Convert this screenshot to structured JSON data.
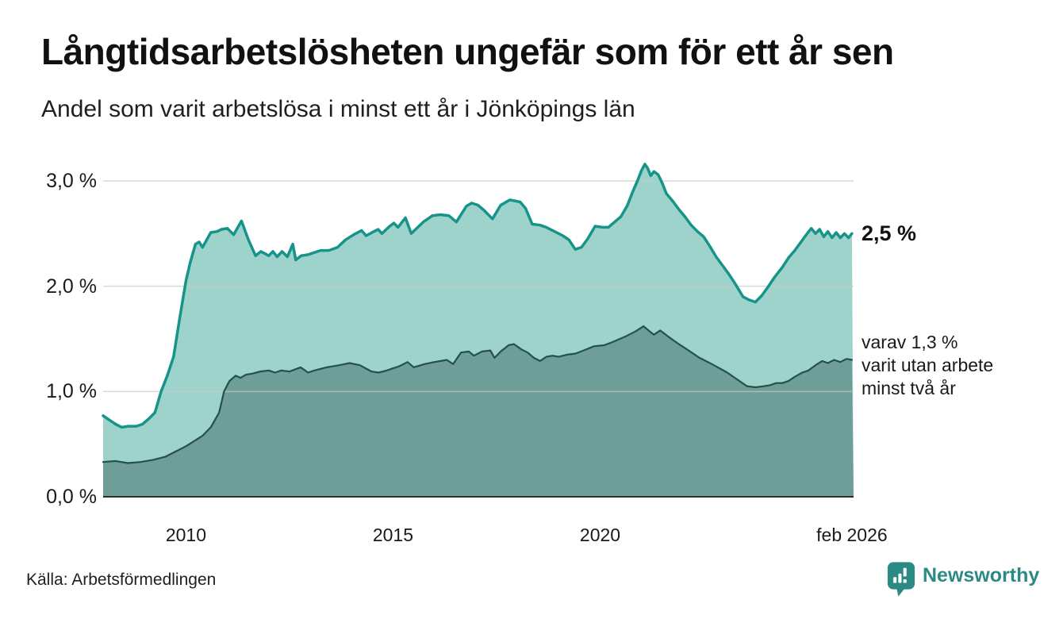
{
  "header": {
    "title": "Långtidsarbetslösheten ungefär som för ett år sen",
    "subtitle": "Andel som varit arbetslösa i minst ett år i Jönköpings län"
  },
  "annotations": {
    "latest_total": "2,5 %",
    "latest_two_year": "varav 1,3 %\nvarit utan arbete\nminst två år"
  },
  "footer": {
    "source": "Källa: Arbetsförmedlingen",
    "brand": "Newsworthy",
    "brand_icon": "newsworthy-bubble-barchart-icon"
  },
  "colors": {
    "total_line": "#17948a",
    "total_fill": "#9ed3cc",
    "two_year_line": "#23514e",
    "two_year_fill": "#6f9d97",
    "gridline": "#c9c9c9",
    "axis": "#1a1a1a",
    "brand_teal": "#2b8b84"
  },
  "chart_data": {
    "type": "area",
    "title": "Långtidsarbetslösheten ungefär som för ett år sen",
    "subtitle": "Andel som varit arbetslösa i minst ett år i Jönköpings län",
    "xlabel": "",
    "ylabel": "",
    "xlim": [
      2008.0,
      2026.12
    ],
    "ylim": [
      0,
      3.2
    ],
    "grid": true,
    "legend": "none",
    "y_ticks": [
      {
        "label": "0,0 %",
        "value": 0
      },
      {
        "label": "1,0 %",
        "value": 1
      },
      {
        "label": "2,0 %",
        "value": 2
      },
      {
        "label": "3,0 %",
        "value": 3
      }
    ],
    "x_ticks": [
      {
        "label": "2010",
        "year": 2010
      },
      {
        "label": "2015",
        "year": 2015
      },
      {
        "label": "2020",
        "year": 2020
      },
      {
        "label": "feb 2026",
        "year": 2026.08
      }
    ],
    "series": [
      {
        "name": "Arbetslösa minst ett år",
        "latest_label": "2,5 %",
        "latest_value": 2.5,
        "color": "#17948a",
        "fill": "#9ed3cc",
        "stroke_width": 3.5,
        "points": [
          [
            2008.0,
            0.77
          ],
          [
            2008.15,
            0.73
          ],
          [
            2008.3,
            0.69
          ],
          [
            2008.45,
            0.66
          ],
          [
            2008.6,
            0.67
          ],
          [
            2008.8,
            0.67
          ],
          [
            2008.95,
            0.69
          ],
          [
            2009.1,
            0.74
          ],
          [
            2009.25,
            0.8
          ],
          [
            2009.4,
            1.0
          ],
          [
            2009.55,
            1.15
          ],
          [
            2009.7,
            1.33
          ],
          [
            2009.85,
            1.7
          ],
          [
            2010.0,
            2.05
          ],
          [
            2010.1,
            2.22
          ],
          [
            2010.23,
            2.4
          ],
          [
            2010.32,
            2.42
          ],
          [
            2010.4,
            2.37
          ],
          [
            2010.6,
            2.51
          ],
          [
            2010.75,
            2.52
          ],
          [
            2010.86,
            2.54
          ],
          [
            2011.0,
            2.55
          ],
          [
            2011.15,
            2.49
          ],
          [
            2011.34,
            2.62
          ],
          [
            2011.5,
            2.45
          ],
          [
            2011.68,
            2.29
          ],
          [
            2011.81,
            2.33
          ],
          [
            2012.0,
            2.29
          ],
          [
            2012.1,
            2.33
          ],
          [
            2012.2,
            2.28
          ],
          [
            2012.32,
            2.33
          ],
          [
            2012.45,
            2.28
          ],
          [
            2012.58,
            2.4
          ],
          [
            2012.65,
            2.25
          ],
          [
            2012.78,
            2.29
          ],
          [
            2012.95,
            2.3
          ],
          [
            2013.1,
            2.32
          ],
          [
            2013.25,
            2.34
          ],
          [
            2013.45,
            2.34
          ],
          [
            2013.66,
            2.37
          ],
          [
            2013.85,
            2.44
          ],
          [
            2014.05,
            2.49
          ],
          [
            2014.24,
            2.53
          ],
          [
            2014.35,
            2.48
          ],
          [
            2014.54,
            2.52
          ],
          [
            2014.64,
            2.54
          ],
          [
            2014.73,
            2.5
          ],
          [
            2014.92,
            2.57
          ],
          [
            2015.02,
            2.6
          ],
          [
            2015.12,
            2.56
          ],
          [
            2015.3,
            2.65
          ],
          [
            2015.44,
            2.5
          ],
          [
            2015.73,
            2.61
          ],
          [
            2015.95,
            2.67
          ],
          [
            2016.14,
            2.68
          ],
          [
            2016.35,
            2.67
          ],
          [
            2016.53,
            2.61
          ],
          [
            2016.77,
            2.76
          ],
          [
            2016.9,
            2.79
          ],
          [
            2017.05,
            2.77
          ],
          [
            2017.2,
            2.72
          ],
          [
            2017.4,
            2.64
          ],
          [
            2017.6,
            2.77
          ],
          [
            2017.82,
            2.82
          ],
          [
            2018.07,
            2.8
          ],
          [
            2018.2,
            2.74
          ],
          [
            2018.36,
            2.59
          ],
          [
            2018.55,
            2.58
          ],
          [
            2018.7,
            2.56
          ],
          [
            2018.9,
            2.52
          ],
          [
            2019.1,
            2.48
          ],
          [
            2019.25,
            2.44
          ],
          [
            2019.4,
            2.35
          ],
          [
            2019.55,
            2.37
          ],
          [
            2019.7,
            2.45
          ],
          [
            2019.88,
            2.57
          ],
          [
            2020.05,
            2.56
          ],
          [
            2020.2,
            2.56
          ],
          [
            2020.35,
            2.61
          ],
          [
            2020.5,
            2.66
          ],
          [
            2020.65,
            2.76
          ],
          [
            2020.8,
            2.91
          ],
          [
            2020.9,
            3.0
          ],
          [
            2021.0,
            3.1
          ],
          [
            2021.08,
            3.16
          ],
          [
            2021.15,
            3.12
          ],
          [
            2021.22,
            3.05
          ],
          [
            2021.3,
            3.09
          ],
          [
            2021.4,
            3.06
          ],
          [
            2021.5,
            2.98
          ],
          [
            2021.6,
            2.88
          ],
          [
            2021.75,
            2.81
          ],
          [
            2021.9,
            2.73
          ],
          [
            2022.05,
            2.66
          ],
          [
            2022.2,
            2.58
          ],
          [
            2022.35,
            2.52
          ],
          [
            2022.5,
            2.47
          ],
          [
            2022.65,
            2.38
          ],
          [
            2022.8,
            2.28
          ],
          [
            2022.95,
            2.2
          ],
          [
            2023.1,
            2.12
          ],
          [
            2023.25,
            2.03
          ],
          [
            2023.45,
            1.9
          ],
          [
            2023.6,
            1.87
          ],
          [
            2023.75,
            1.85
          ],
          [
            2023.9,
            1.91
          ],
          [
            2024.05,
            1.99
          ],
          [
            2024.2,
            2.08
          ],
          [
            2024.4,
            2.18
          ],
          [
            2024.55,
            2.27
          ],
          [
            2024.7,
            2.34
          ],
          [
            2024.85,
            2.42
          ],
          [
            2025.0,
            2.5
          ],
          [
            2025.1,
            2.55
          ],
          [
            2025.2,
            2.5
          ],
          [
            2025.3,
            2.54
          ],
          [
            2025.4,
            2.47
          ],
          [
            2025.5,
            2.52
          ],
          [
            2025.6,
            2.46
          ],
          [
            2025.7,
            2.51
          ],
          [
            2025.8,
            2.46
          ],
          [
            2025.9,
            2.5
          ],
          [
            2026.0,
            2.46
          ],
          [
            2026.08,
            2.5
          ]
        ]
      },
      {
        "name": "varav utan arbete minst två år",
        "latest_label": "1,3 %",
        "latest_value": 1.3,
        "color": "#23514e",
        "fill": "#6f9d97",
        "stroke_width": 2.2,
        "points": [
          [
            2008.0,
            0.33
          ],
          [
            2008.3,
            0.34
          ],
          [
            2008.6,
            0.32
          ],
          [
            2008.9,
            0.33
          ],
          [
            2009.2,
            0.35
          ],
          [
            2009.5,
            0.38
          ],
          [
            2009.8,
            0.44
          ],
          [
            2010.0,
            0.48
          ],
          [
            2010.2,
            0.53
          ],
          [
            2010.4,
            0.58
          ],
          [
            2010.6,
            0.66
          ],
          [
            2010.8,
            0.8
          ],
          [
            2010.92,
            1.0
          ],
          [
            2011.05,
            1.1
          ],
          [
            2011.2,
            1.15
          ],
          [
            2011.32,
            1.13
          ],
          [
            2011.45,
            1.16
          ],
          [
            2011.6,
            1.17
          ],
          [
            2011.8,
            1.19
          ],
          [
            2012.0,
            1.2
          ],
          [
            2012.15,
            1.18
          ],
          [
            2012.3,
            1.2
          ],
          [
            2012.5,
            1.19
          ],
          [
            2012.77,
            1.23
          ],
          [
            2012.95,
            1.18
          ],
          [
            2013.1,
            1.2
          ],
          [
            2013.4,
            1.23
          ],
          [
            2013.7,
            1.25
          ],
          [
            2013.95,
            1.27
          ],
          [
            2014.2,
            1.25
          ],
          [
            2014.48,
            1.19
          ],
          [
            2014.65,
            1.18
          ],
          [
            2014.85,
            1.2
          ],
          [
            2015.0,
            1.22
          ],
          [
            2015.15,
            1.24
          ],
          [
            2015.35,
            1.28
          ],
          [
            2015.5,
            1.23
          ],
          [
            2015.76,
            1.26
          ],
          [
            2016.0,
            1.28
          ],
          [
            2016.3,
            1.3
          ],
          [
            2016.45,
            1.26
          ],
          [
            2016.64,
            1.37
          ],
          [
            2016.83,
            1.38
          ],
          [
            2016.95,
            1.34
          ],
          [
            2017.15,
            1.38
          ],
          [
            2017.35,
            1.39
          ],
          [
            2017.45,
            1.32
          ],
          [
            2017.6,
            1.38
          ],
          [
            2017.79,
            1.44
          ],
          [
            2017.92,
            1.45
          ],
          [
            2018.1,
            1.4
          ],
          [
            2018.25,
            1.37
          ],
          [
            2018.4,
            1.32
          ],
          [
            2018.55,
            1.29
          ],
          [
            2018.7,
            1.33
          ],
          [
            2018.85,
            1.34
          ],
          [
            2019.0,
            1.33
          ],
          [
            2019.2,
            1.35
          ],
          [
            2019.4,
            1.36
          ],
          [
            2019.6,
            1.39
          ],
          [
            2019.85,
            1.43
          ],
          [
            2020.1,
            1.44
          ],
          [
            2020.3,
            1.47
          ],
          [
            2020.6,
            1.52
          ],
          [
            2020.85,
            1.57
          ],
          [
            2021.05,
            1.62
          ],
          [
            2021.2,
            1.57
          ],
          [
            2021.3,
            1.54
          ],
          [
            2021.45,
            1.58
          ],
          [
            2021.65,
            1.52
          ],
          [
            2021.9,
            1.45
          ],
          [
            2022.1,
            1.4
          ],
          [
            2022.4,
            1.32
          ],
          [
            2022.7,
            1.26
          ],
          [
            2023.07,
            1.18
          ],
          [
            2023.4,
            1.09
          ],
          [
            2023.55,
            1.05
          ],
          [
            2023.75,
            1.04
          ],
          [
            2023.95,
            1.05
          ],
          [
            2024.1,
            1.06
          ],
          [
            2024.25,
            1.08
          ],
          [
            2024.4,
            1.08
          ],
          [
            2024.55,
            1.1
          ],
          [
            2024.7,
            1.14
          ],
          [
            2024.88,
            1.18
          ],
          [
            2025.03,
            1.2
          ],
          [
            2025.2,
            1.25
          ],
          [
            2025.36,
            1.29
          ],
          [
            2025.5,
            1.27
          ],
          [
            2025.65,
            1.3
          ],
          [
            2025.8,
            1.28
          ],
          [
            2025.95,
            1.31
          ],
          [
            2026.08,
            1.3
          ]
        ]
      }
    ]
  }
}
